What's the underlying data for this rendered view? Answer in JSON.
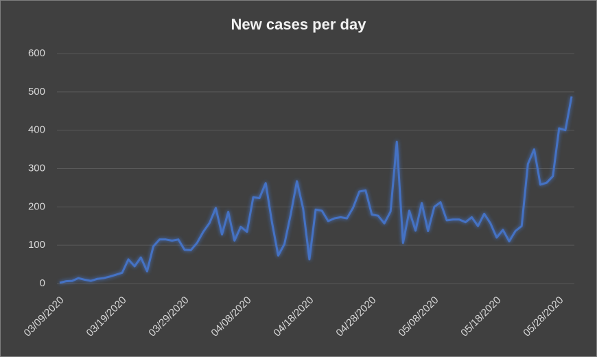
{
  "chart_data": {
    "type": "line",
    "title": "New cases per day",
    "x": [
      "03/09/2020",
      "03/10/2020",
      "03/11/2020",
      "03/12/2020",
      "03/13/2020",
      "03/14/2020",
      "03/15/2020",
      "03/16/2020",
      "03/17/2020",
      "03/18/2020",
      "03/19/2020",
      "03/20/2020",
      "03/21/2020",
      "03/22/2020",
      "03/23/2020",
      "03/24/2020",
      "03/25/2020",
      "03/26/2020",
      "03/27/2020",
      "03/28/2020",
      "03/29/2020",
      "03/30/2020",
      "03/31/2020",
      "04/01/2020",
      "04/02/2020",
      "04/03/2020",
      "04/04/2020",
      "04/05/2020",
      "04/06/2020",
      "04/07/2020",
      "04/08/2020",
      "04/09/2020",
      "04/10/2020",
      "04/11/2020",
      "04/12/2020",
      "04/13/2020",
      "04/14/2020",
      "04/15/2020",
      "04/16/2020",
      "04/17/2020",
      "04/18/2020",
      "04/19/2020",
      "04/20/2020",
      "04/21/2020",
      "04/22/2020",
      "04/23/2020",
      "04/24/2020",
      "04/25/2020",
      "04/26/2020",
      "04/27/2020",
      "04/28/2020",
      "04/29/2020",
      "04/30/2020",
      "05/01/2020",
      "05/02/2020",
      "05/03/2020",
      "05/04/2020",
      "05/05/2020",
      "05/06/2020",
      "05/07/2020",
      "05/08/2020",
      "05/09/2020",
      "05/10/2020",
      "05/11/2020",
      "05/12/2020",
      "05/13/2020",
      "05/14/2020",
      "05/15/2020",
      "05/16/2020",
      "05/17/2020",
      "05/18/2020",
      "05/19/2020",
      "05/20/2020",
      "05/21/2020",
      "05/22/2020",
      "05/23/2020",
      "05/24/2020",
      "05/25/2020",
      "05/26/2020",
      "05/27/2020",
      "05/28/2020",
      "05/29/2020",
      "05/30/2020"
    ],
    "series": [
      {
        "name": "New cases",
        "color": "#4472c4",
        "values": [
          2,
          6,
          7,
          14,
          10,
          7,
          12,
          14,
          18,
          23,
          28,
          63,
          45,
          68,
          32,
          97,
          115,
          115,
          112,
          115,
          88,
          87,
          106,
          135,
          158,
          197,
          128,
          187,
          112,
          148,
          135,
          225,
          223,
          262,
          160,
          73,
          103,
          180,
          267,
          195,
          63,
          193,
          190,
          163,
          170,
          173,
          170,
          198,
          240,
          243,
          180,
          177,
          157,
          188,
          370,
          106,
          190,
          138,
          210,
          137,
          200,
          212,
          165,
          167,
          167,
          160,
          173,
          150,
          182,
          157,
          120,
          140,
          110,
          137,
          150,
          312,
          350,
          258,
          263,
          280,
          405,
          400,
          488
        ]
      }
    ],
    "xticks": [
      "03/09/2020",
      "03/19/2020",
      "03/29/2020",
      "04/08/2020",
      "04/18/2020",
      "04/28/2020",
      "05/08/2020",
      "05/18/2020",
      "05/28/2020"
    ],
    "ylim": [
      0,
      600
    ],
    "yticks": [
      0,
      100,
      200,
      300,
      400,
      500,
      600
    ],
    "grid": true
  }
}
